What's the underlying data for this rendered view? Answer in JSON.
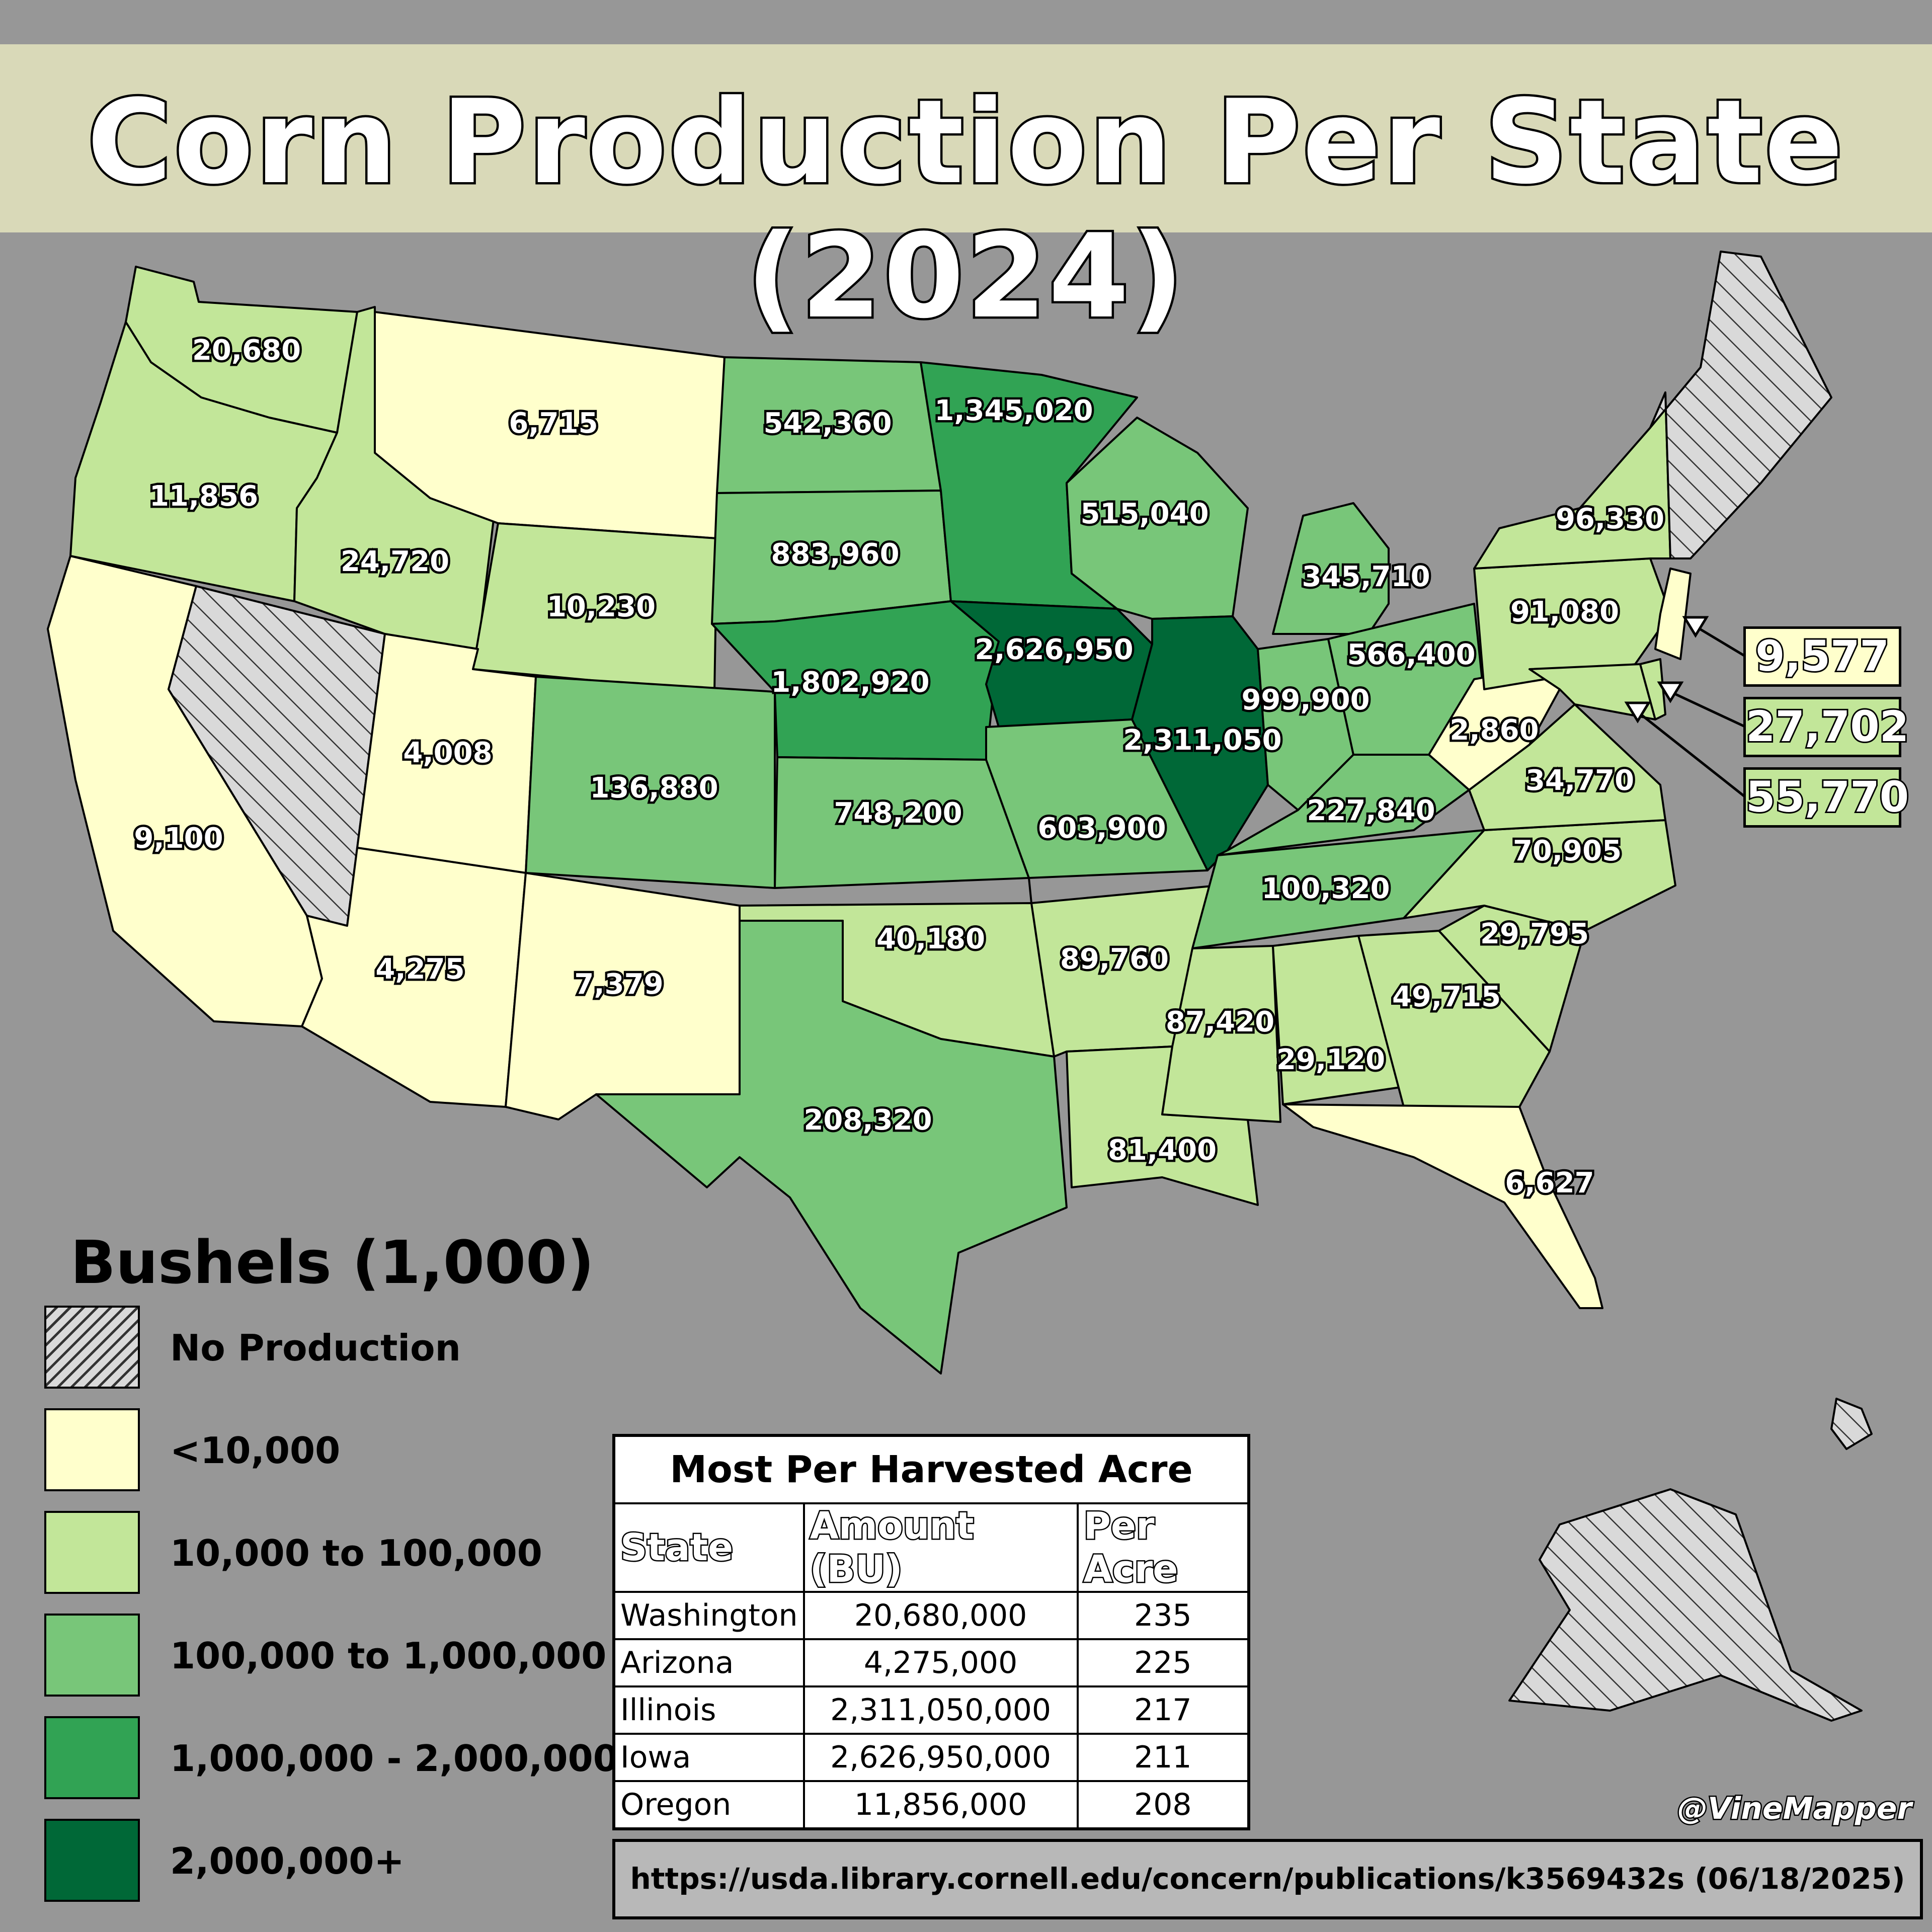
{
  "title": "Corn Production Per State (2024)",
  "legend": {
    "title": "Bushels (1,000)",
    "items": [
      {
        "label": "No Production",
        "color": "hatch"
      },
      {
        "label": "<10,000",
        "color": "#ffffcc"
      },
      {
        "label": "10,000 to 100,000",
        "color": "#c2e699"
      },
      {
        "label": "100,000 to 1,000,000",
        "color": "#78c679"
      },
      {
        "label": "1,000,000 - 2,000,000",
        "color": "#31a354"
      },
      {
        "label": "2,000,000+",
        "color": "#006837"
      }
    ]
  },
  "states": [
    {
      "name": "Washington",
      "value": "20,680"
    },
    {
      "name": "Oregon",
      "value": "11,856"
    },
    {
      "name": "California",
      "value": "9,100"
    },
    {
      "name": "Idaho",
      "value": "24,720"
    },
    {
      "name": "Montana",
      "value": "6,715"
    },
    {
      "name": "Wyoming",
      "value": "10,230"
    },
    {
      "name": "Utah",
      "value": "4,008"
    },
    {
      "name": "Arizona",
      "value": "4,275"
    },
    {
      "name": "New Mexico",
      "value": "7,379"
    },
    {
      "name": "Colorado",
      "value": "136,880"
    },
    {
      "name": "North Dakota",
      "value": "542,360"
    },
    {
      "name": "South Dakota",
      "value": "883,960"
    },
    {
      "name": "Nebraska",
      "value": "1,802,920"
    },
    {
      "name": "Kansas",
      "value": "748,200"
    },
    {
      "name": "Oklahoma",
      "value": "40,180"
    },
    {
      "name": "Texas",
      "value": "208,320"
    },
    {
      "name": "Minnesota",
      "value": "1,345,020"
    },
    {
      "name": "Iowa",
      "value": "2,626,950"
    },
    {
      "name": "Missouri",
      "value": "603,900"
    },
    {
      "name": "Arkansas",
      "value": "89,760"
    },
    {
      "name": "Louisiana",
      "value": "81,400"
    },
    {
      "name": "Wisconsin",
      "value": "515,040"
    },
    {
      "name": "Illinois",
      "value": "2,311,050"
    },
    {
      "name": "Michigan",
      "value": "345,710"
    },
    {
      "name": "Indiana",
      "value": "999,900"
    },
    {
      "name": "Ohio",
      "value": "566,400"
    },
    {
      "name": "Kentucky",
      "value": "227,840"
    },
    {
      "name": "Tennessee",
      "value": "100,320"
    },
    {
      "name": "Mississippi",
      "value": "87,420"
    },
    {
      "name": "Alabama",
      "value": "29,120"
    },
    {
      "name": "Georgia",
      "value": "49,715"
    },
    {
      "name": "Florida",
      "value": "6,627"
    },
    {
      "name": "South Carolina",
      "value": "29,795"
    },
    {
      "name": "North Carolina",
      "value": "70,905"
    },
    {
      "name": "Virginia",
      "value": "34,770"
    },
    {
      "name": "West Virginia",
      "value": "2,860"
    },
    {
      "name": "Pennsylvania",
      "value": "91,080"
    },
    {
      "name": "New York",
      "value": "96,330"
    }
  ],
  "callouts": [
    {
      "value": "9,577",
      "color": "#ffffcc"
    },
    {
      "value": "27,702",
      "color": "#c2e699"
    },
    {
      "value": "55,770",
      "color": "#c2e699"
    }
  ],
  "table": {
    "caption": "Most Per Harvested Acre",
    "headers": [
      "State",
      "Amount (BU)",
      "Per Acre"
    ],
    "rows": [
      [
        "Washington",
        "20,680,000",
        "235"
      ],
      [
        "Arizona",
        "4,275,000",
        "225"
      ],
      [
        "Illinois",
        "2,311,050,000",
        "217"
      ],
      [
        "Iowa",
        "2,626,950,000",
        "211"
      ],
      [
        "Oregon",
        "11,856,000",
        "208"
      ]
    ]
  },
  "credit": "@VineMapper",
  "source": "https://usda.library.cornell.edu/concern/publications/k3569432s (06/18/2025)"
}
